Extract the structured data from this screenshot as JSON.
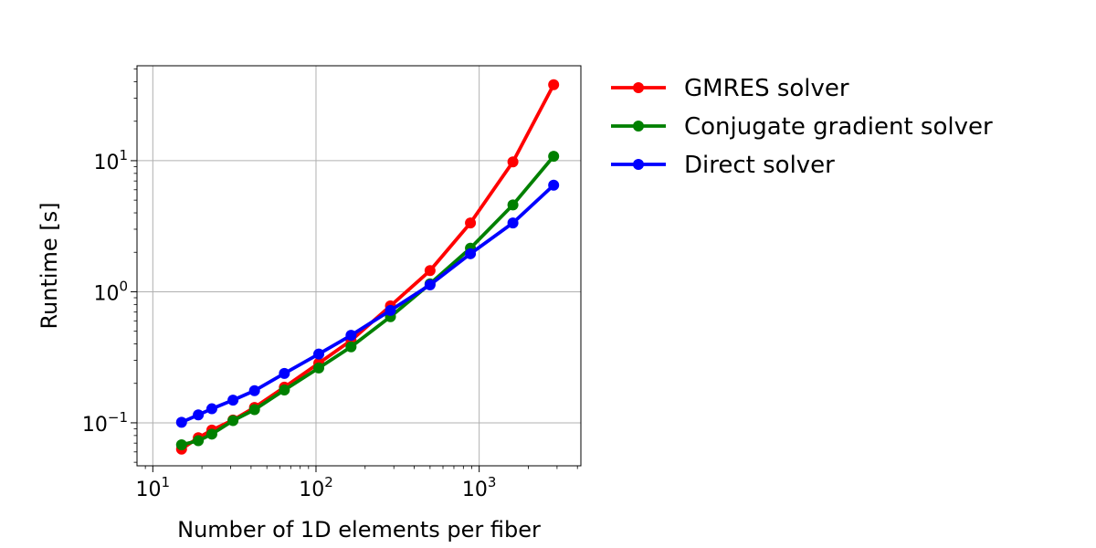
{
  "chart_data": {
    "type": "line",
    "xlabel": "Number of 1D elements per fiber",
    "ylabel": "Runtime [s]",
    "xscale": "log",
    "yscale": "log",
    "xlim": [
      8,
      4200
    ],
    "ylim": [
      0.047,
      53
    ],
    "grid": true,
    "legend_position": "outside-right",
    "x_ticks": [
      {
        "base": "10",
        "exp": "1",
        "value": 10
      },
      {
        "base": "10",
        "exp": "2",
        "value": 100
      },
      {
        "base": "10",
        "exp": "3",
        "value": 1000
      }
    ],
    "y_ticks": [
      {
        "base": "10",
        "exp": "−1",
        "value": 0.1
      },
      {
        "base": "10",
        "exp": "0",
        "value": 1
      },
      {
        "base": "10",
        "exp": "1",
        "value": 10
      }
    ],
    "series": [
      {
        "name": "GMRES solver",
        "color": "#ff0000",
        "x": [
          15,
          19,
          23,
          31,
          42,
          64,
          104,
          164,
          286,
          500,
          884,
          1610,
          2860
        ],
        "y": [
          0.063,
          0.077,
          0.088,
          0.105,
          0.131,
          0.187,
          0.285,
          0.425,
          0.78,
          1.45,
          3.35,
          9.8,
          38.0
        ]
      },
      {
        "name": "Conjugate gradient solver",
        "color": "#008000",
        "x": [
          15,
          19,
          23,
          31,
          42,
          64,
          104,
          164,
          286,
          500,
          884,
          1610,
          2860
        ],
        "y": [
          0.068,
          0.073,
          0.082,
          0.104,
          0.126,
          0.178,
          0.262,
          0.38,
          0.645,
          1.15,
          2.15,
          4.6,
          10.8
        ]
      },
      {
        "name": "Direct solver",
        "color": "#0000ff",
        "x": [
          15,
          19,
          23,
          31,
          42,
          64,
          104,
          164,
          286,
          500,
          884,
          1610,
          2860
        ],
        "y": [
          0.101,
          0.115,
          0.128,
          0.149,
          0.176,
          0.238,
          0.335,
          0.465,
          0.72,
          1.13,
          1.95,
          3.35,
          6.5
        ]
      }
    ]
  }
}
